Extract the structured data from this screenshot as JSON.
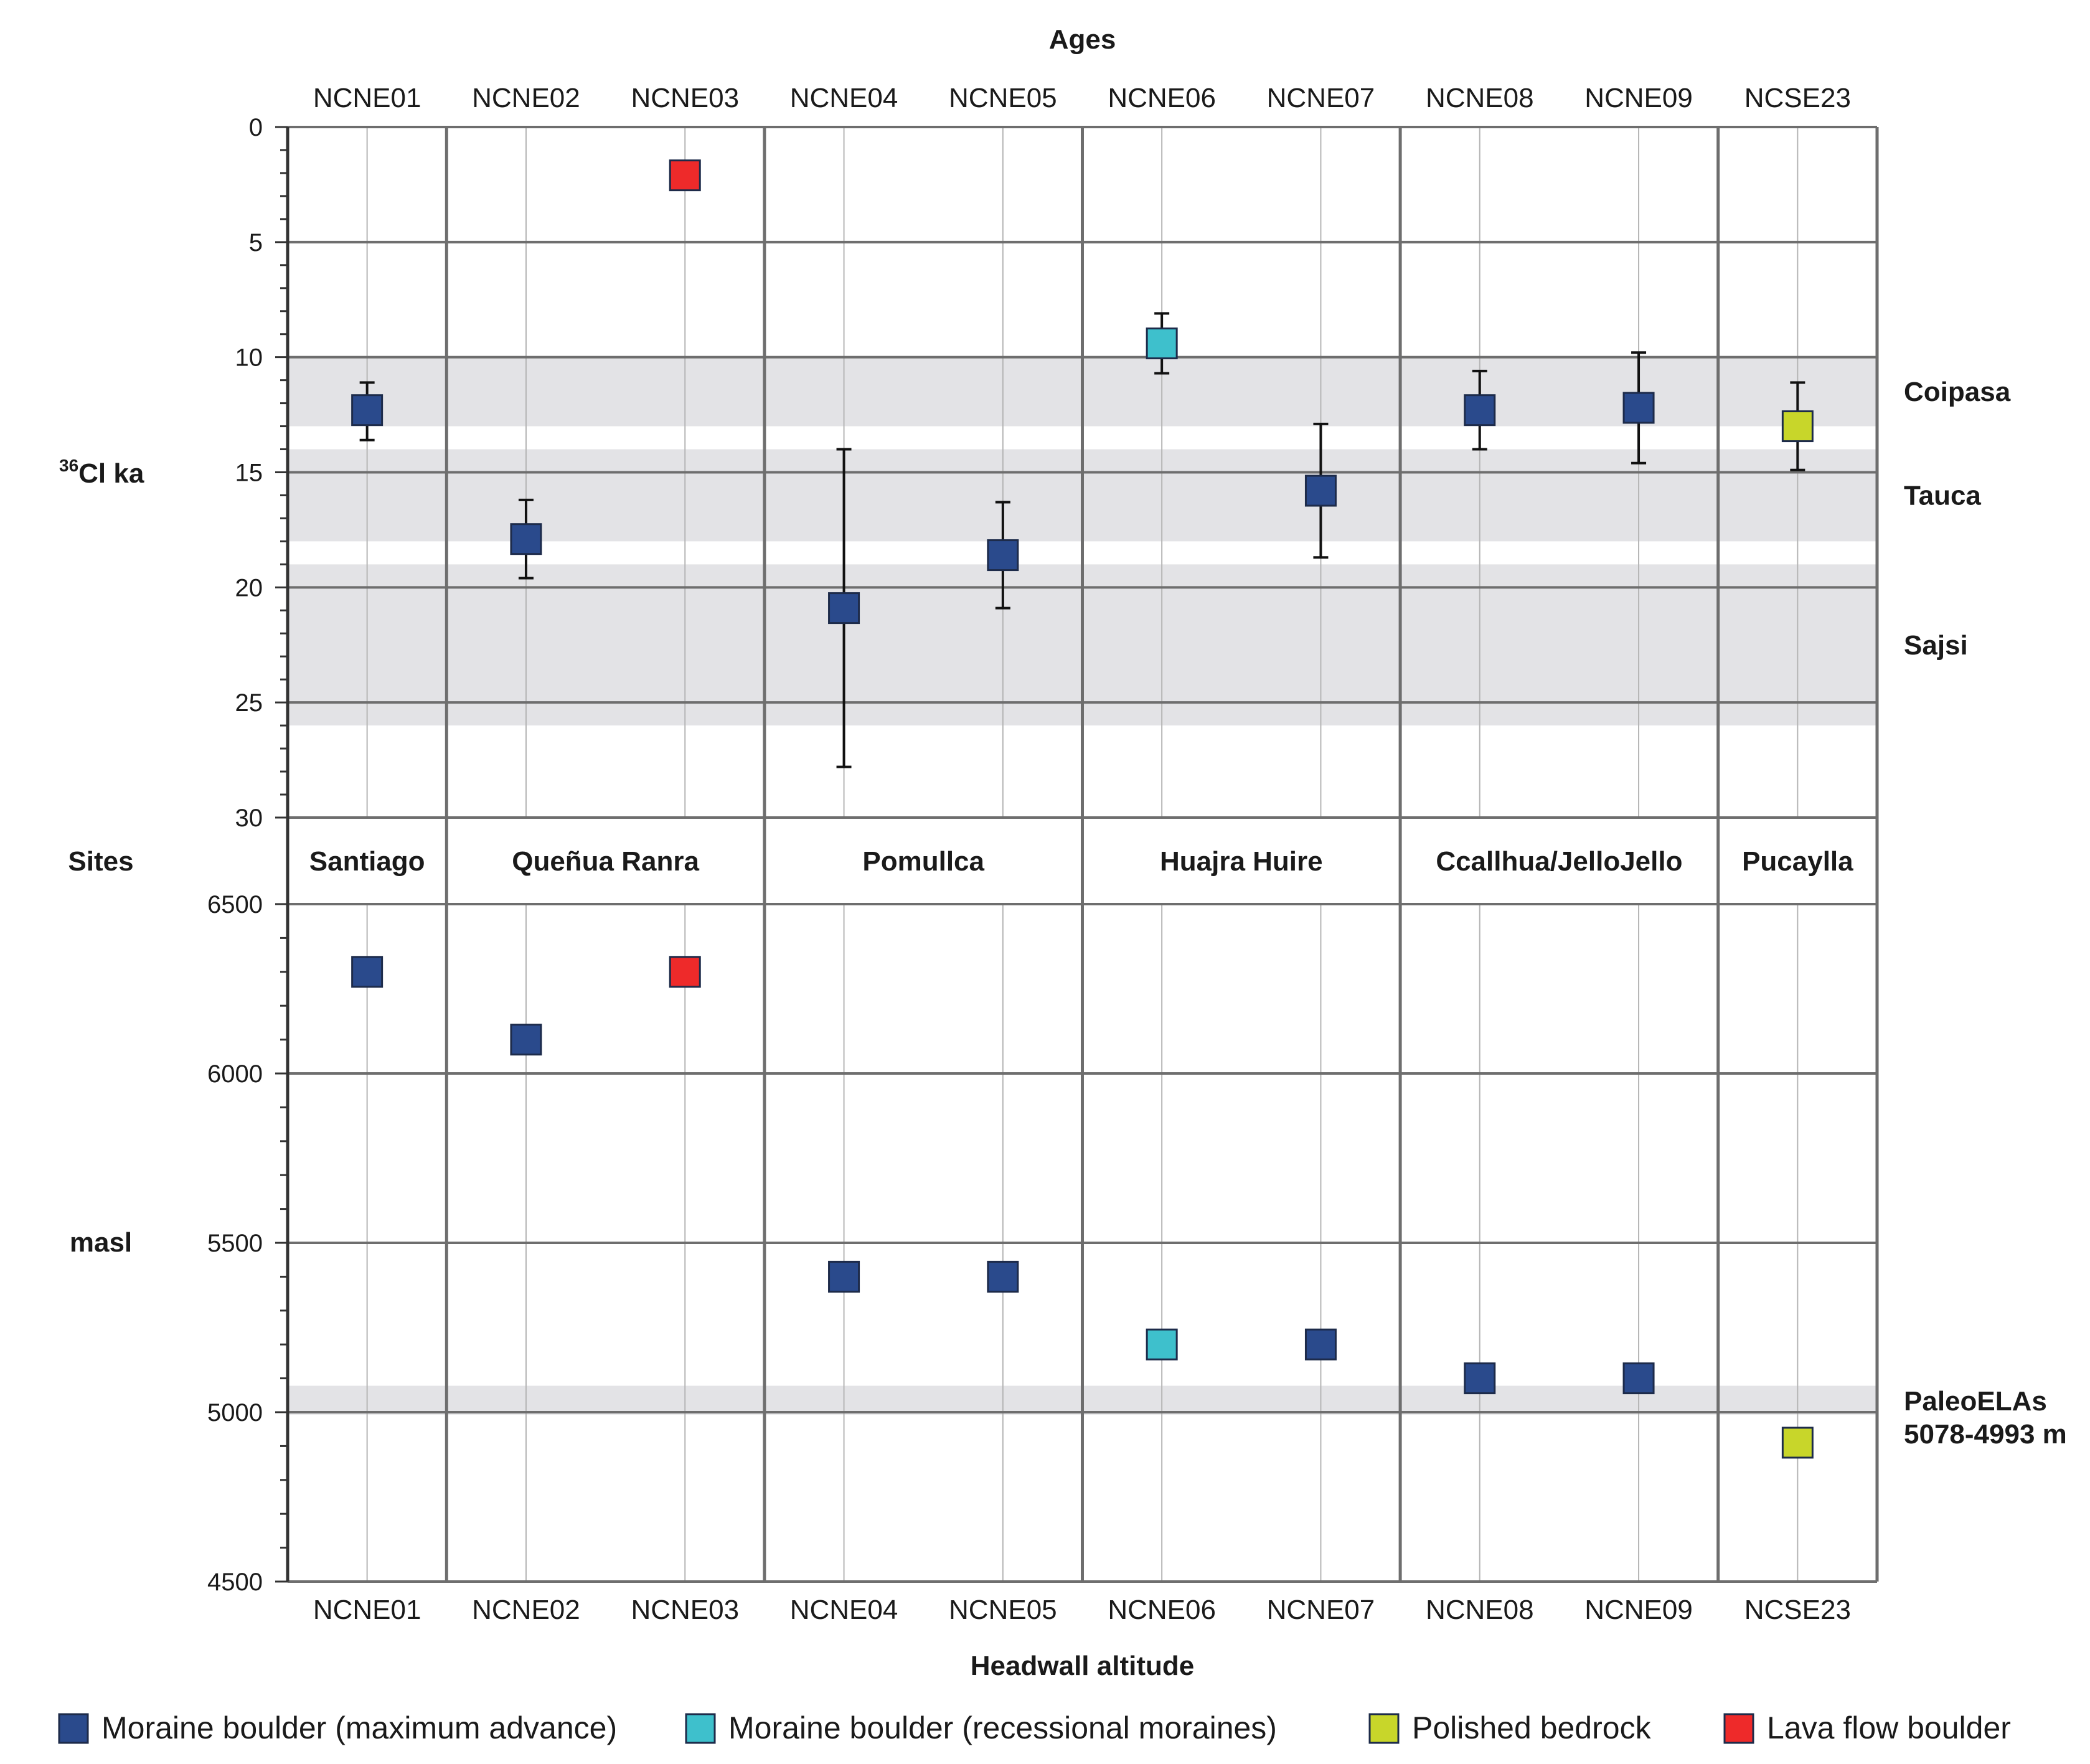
{
  "chart_data": {
    "type": "scatter",
    "colors": {
      "moraine_max": "#2a4a8c",
      "moraine_recessional": "#3ec0cc",
      "polished_bedrock": "#c8d62a",
      "lava_flow": "#ee2a2a",
      "band": "#e3e3e6",
      "grid": "#6e6e6e"
    },
    "samples": [
      "NCNE01",
      "NCNE02",
      "NCNE03",
      "NCNE04",
      "NCNE05",
      "NCNE06",
      "NCNE07",
      "NCNE08",
      "NCNE09",
      "NCSE23"
    ],
    "sites": [
      "Santiago",
      "Queñua Ranra",
      "Pomullca",
      "Huajra Huire",
      "Ccallhua/JelloJello",
      "Pucaylla"
    ],
    "legend": [
      {
        "key": "moraine_max",
        "label": "Moraine boulder (maximum advance)"
      },
      {
        "key": "moraine_recessional",
        "label": "Moraine boulder (recessional moraines)"
      },
      {
        "key": "polished_bedrock",
        "label": "Polished bedrock"
      },
      {
        "key": "lava_flow",
        "label": "Lava flow boulder"
      }
    ],
    "ages_panel": {
      "title": "Ages",
      "ylabel_sup": "36",
      "ylabel": "Cl ka",
      "ylim": [
        0,
        30
      ],
      "ticks": [
        "0",
        "5",
        "10",
        "15",
        "20",
        "25",
        "30"
      ],
      "bands": [
        {
          "name": "Coipasa",
          "from": 10,
          "to": 13
        },
        {
          "name": "Tauca",
          "from": 14,
          "to": 18
        },
        {
          "name": "Sajsi",
          "from": 19,
          "to": 26
        }
      ],
      "points": [
        {
          "sample": "NCNE01",
          "type": "moraine_max",
          "age": 12.3,
          "err_low": 11.1,
          "err_high": 13.6
        },
        {
          "sample": "NCNE02",
          "type": "moraine_max",
          "age": 17.9,
          "err_low": 16.2,
          "err_high": 19.6
        },
        {
          "sample": "NCNE03",
          "type": "lava_flow",
          "age": 2.1,
          "err_low": null,
          "err_high": null
        },
        {
          "sample": "NCNE04",
          "type": "moraine_max",
          "age": 20.9,
          "err_low": 14.0,
          "err_high": 27.8
        },
        {
          "sample": "NCNE05",
          "type": "moraine_max",
          "age": 18.6,
          "err_low": 16.3,
          "err_high": 20.9
        },
        {
          "sample": "NCNE06",
          "type": "moraine_recessional",
          "age": 9.4,
          "err_low": 8.1,
          "err_high": 10.7
        },
        {
          "sample": "NCNE07",
          "type": "moraine_max",
          "age": 15.8,
          "err_low": 12.9,
          "err_high": 18.7
        },
        {
          "sample": "NCNE08",
          "type": "moraine_max",
          "age": 12.3,
          "err_low": 10.6,
          "err_high": 14.0
        },
        {
          "sample": "NCNE09",
          "type": "moraine_max",
          "age": 12.2,
          "err_low": 9.8,
          "err_high": 14.6
        },
        {
          "sample": "NCSE23",
          "type": "polished_bedrock",
          "age": 13.0,
          "err_low": 11.1,
          "err_high": 14.9
        }
      ]
    },
    "altitude_panel": {
      "title": "Headwall altitude",
      "sites_label": "Sites",
      "ylabel": "masl",
      "ylim": [
        4500,
        6500
      ],
      "ticks": [
        "6500",
        "6000",
        "5500",
        "5000",
        "4500"
      ],
      "bands": [
        {
          "name": "PaleoELAs",
          "detail": "5078-4993 m",
          "from": 4993,
          "to": 5078
        }
      ],
      "points": [
        {
          "sample": "NCNE01",
          "type": "moraine_max",
          "altitude": 6300
        },
        {
          "sample": "NCNE02",
          "type": "moraine_max",
          "altitude": 6100
        },
        {
          "sample": "NCNE03",
          "type": "lava_flow",
          "altitude": 6300
        },
        {
          "sample": "NCNE04",
          "type": "moraine_max",
          "altitude": 5400
        },
        {
          "sample": "NCNE05",
          "type": "moraine_max",
          "altitude": 5400
        },
        {
          "sample": "NCNE06",
          "type": "moraine_recessional",
          "altitude": 5200
        },
        {
          "sample": "NCNE07",
          "type": "moraine_max",
          "altitude": 5200
        },
        {
          "sample": "NCNE08",
          "type": "moraine_max",
          "altitude": 5100
        },
        {
          "sample": "NCNE09",
          "type": "moraine_max",
          "altitude": 5100
        },
        {
          "sample": "NCSE23",
          "type": "polished_bedrock",
          "altitude": 4910
        }
      ]
    }
  }
}
